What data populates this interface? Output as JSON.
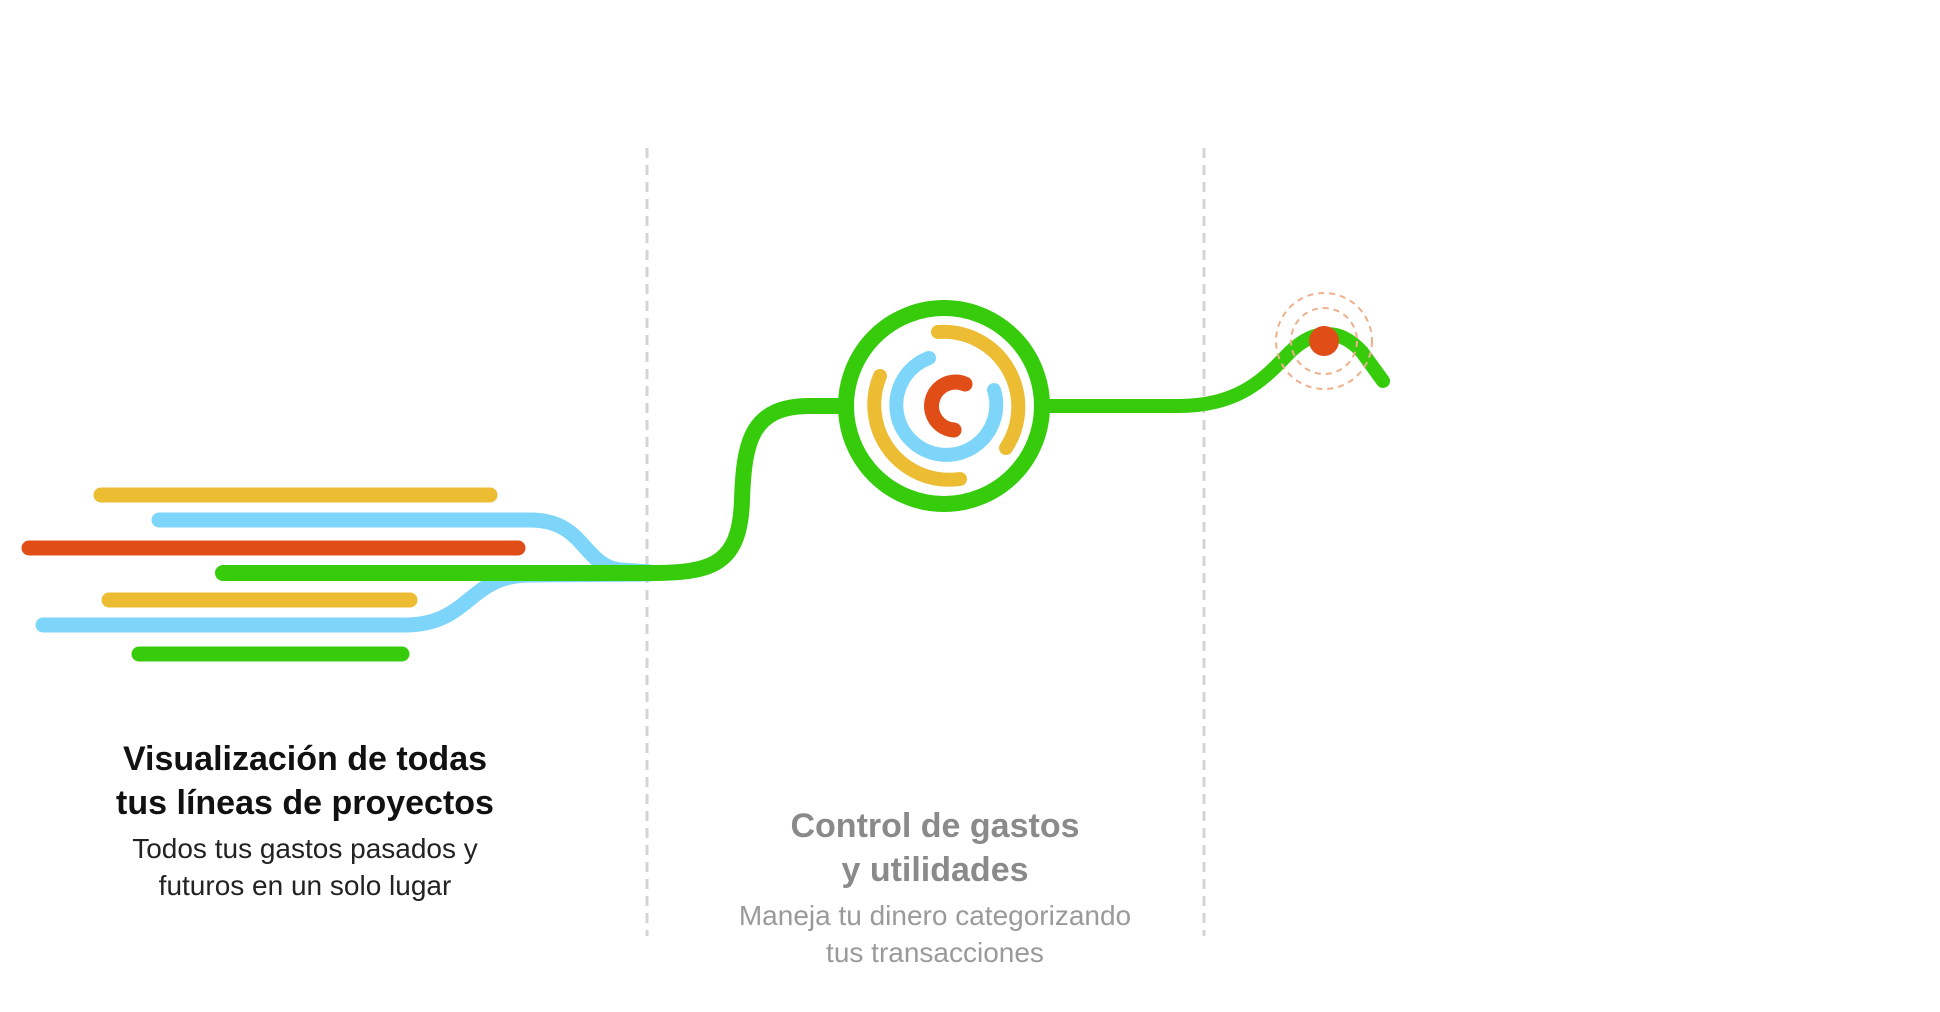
{
  "colors": {
    "green": "#36cc0c",
    "yellow": "#ecbd33",
    "blue": "#7dd6fa",
    "red": "#e04d16",
    "divider": "#d4d4d4",
    "ring": "#eeb08c"
  },
  "icons": {
    "hub": "concentric-rings-icon",
    "pin": "location-pulse-icon"
  },
  "features": [
    {
      "title_line1": "Visualización de todas",
      "title_line2": "tus líneas de proyectos",
      "desc_line1": "Todos tus gastos pasados y",
      "desc_line2": "futuros en un solo lugar"
    },
    {
      "title_line1": "Control de gastos",
      "title_line2": "y utilidades",
      "desc_line1": "Maneja tu dinero categorizando",
      "desc_line2": "tus transacciones"
    }
  ]
}
